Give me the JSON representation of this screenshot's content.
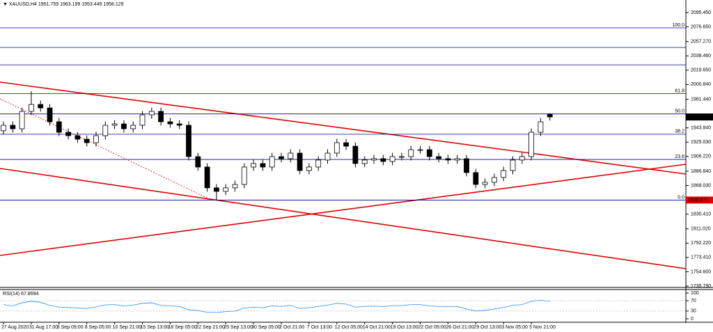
{
  "chart_data": {
    "type": "candlestick",
    "symbol": "XAUUSD,H4",
    "categories": [
      "27 Aug 2020",
      null,
      null,
      "31 Aug 17:00",
      null,
      null,
      "3 Sep 09:00",
      null,
      null,
      "8 Sep 05:00",
      null,
      null,
      "10 Sep 21:00",
      null,
      null,
      "15 Sep 13:00",
      null,
      null,
      "18 Sep 05:00",
      null,
      null,
      "22 Sep 21:00",
      null,
      null,
      "25 Sep 13:00",
      null,
      null,
      "30 Sep 05:00",
      null,
      null,
      "2 Oct 21:00",
      null,
      null,
      "7 Oct 13:00",
      null,
      null,
      "12 Oct 05:00",
      null,
      null,
      "14 Oct 21:00",
      null,
      null,
      "19 Oct 13:00",
      null,
      null,
      "22 Oct 05:00",
      null,
      null,
      "26 Oct 21:00",
      null,
      null,
      "29 Oct 13:00",
      null,
      null,
      "3 Nov 05:00",
      null,
      null,
      "5 Nov 21:00",
      null,
      null
    ],
    "open": [
      1940.0,
      1947.2,
      1942.6,
      1965.5,
      1974.6,
      1970.0,
      1951.8,
      1938.0,
      1933.5,
      1928.9,
      1924.3,
      1933.5,
      1947.2,
      1949.0,
      1942.6,
      1947.2,
      1960.9,
      1965.5,
      1951.8,
      1949.0,
      1947.2,
      1906.0,
      1892.3,
      1864.9,
      1860.3,
      1864.9,
      1869.4,
      1892.3,
      1896.9,
      1892.3,
      1906.0,
      1903.3,
      1910.6,
      1887.7,
      1892.3,
      1901.5,
      1910.6,
      1924.3,
      1919.7,
      1896.9,
      1901.5,
      1903.3,
      1899.6,
      1906.0,
      1906.0,
      1915.1,
      1915.1,
      1906.0,
      1903.3,
      1901.5,
      1903.3,
      1885.0,
      1869.4,
      1872.2,
      1878.6,
      1887.7,
      1901.5,
      1906.0,
      1938.0,
      1961.759
    ],
    "high": [
      1952.2,
      1952.2,
      1970.5,
      1992.0,
      1979.6,
      1975.0,
      1956.8,
      1943.0,
      1938.5,
      1933.9,
      1938.5,
      1952.2,
      1954.0,
      1954.0,
      1952.2,
      1965.9,
      1970.5,
      1970.5,
      1956.8,
      1954.0,
      1952.2,
      1911.0,
      1897.3,
      1869.9,
      1869.9,
      1874.4,
      1897.3,
      1901.9,
      1901.9,
      1911.0,
      1911.0,
      1915.6,
      1915.6,
      1897.3,
      1906.5,
      1915.6,
      1929.3,
      1929.3,
      1924.7,
      1906.5,
      1908.3,
      1908.3,
      1911.0,
      1911.0,
      1920.1,
      1920.1,
      1920.1,
      1911.0,
      1908.3,
      1908.3,
      1908.3,
      1890.0,
      1877.2,
      1883.6,
      1892.7,
      1906.5,
      1911.0,
      1943.0,
      1956.8,
      1963.199
    ],
    "low": [
      1935.0,
      1937.6,
      1937.6,
      1960.5,
      1965.0,
      1946.8,
      1933.0,
      1928.5,
      1923.9,
      1919.3,
      1919.3,
      1928.5,
      1942.2,
      1937.6,
      1937.6,
      1942.2,
      1955.9,
      1946.8,
      1944.0,
      1942.2,
      1901.0,
      1887.3,
      1859.9,
      1848.871,
      1855.3,
      1859.9,
      1864.4,
      1887.3,
      1887.3,
      1887.3,
      1898.3,
      1898.3,
      1882.7,
      1882.7,
      1887.3,
      1896.5,
      1905.6,
      1914.7,
      1891.9,
      1891.9,
      1896.5,
      1894.6,
      1894.6,
      1901.0,
      1901.0,
      1910.1,
      1901.0,
      1898.3,
      1896.5,
      1896.5,
      1880.0,
      1864.4,
      1864.4,
      1867.2,
      1873.6,
      1882.7,
      1896.5,
      1901.0,
      1933.0,
      1953.449
    ],
    "close": [
      1947.2,
      1942.6,
      1965.5,
      1974.6,
      1970.0,
      1951.8,
      1938.0,
      1933.5,
      1928.9,
      1924.3,
      1933.5,
      1947.2,
      1949.0,
      1942.6,
      1947.2,
      1960.9,
      1965.5,
      1951.8,
      1949.0,
      1947.2,
      1906.0,
      1892.3,
      1864.9,
      1860.3,
      1864.9,
      1869.4,
      1892.3,
      1896.9,
      1892.3,
      1906.0,
      1903.3,
      1910.6,
      1887.7,
      1892.3,
      1901.5,
      1910.6,
      1924.3,
      1919.7,
      1896.9,
      1901.5,
      1903.3,
      1899.6,
      1906.0,
      1906.0,
      1915.1,
      1915.1,
      1906.0,
      1903.3,
      1901.5,
      1903.3,
      1885.0,
      1869.4,
      1872.2,
      1878.6,
      1887.7,
      1901.5,
      1906.0,
      1938.0,
      1951.8,
      1958.129
    ],
    "ylim": [
      1734.87,
      2111.92
    ],
    "yticks": [
      {
        "value": 2095.45,
        "label": "2095.450"
      },
      {
        "value": 2076.65,
        "label": "2076.650"
      },
      {
        "value": 2057.27,
        "label": "2057.270"
      },
      {
        "value": 2038.46,
        "label": "2038.460"
      },
      {
        "value": 2019.65,
        "label": "2019.650"
      },
      {
        "value": 2000.84,
        "label": "2000.840"
      },
      {
        "value": 1981.44,
        "label": "1981.440"
      },
      {
        "value": 1943.84,
        "label": "1943.840"
      },
      {
        "value": 1925.03,
        "label": "1925.030"
      },
      {
        "value": 1906.22,
        "label": "1906.220"
      },
      {
        "value": 1886.84,
        "label": "1886.840"
      },
      {
        "value": 1868.03,
        "label": "1868.030"
      },
      {
        "value": 1830.41,
        "label": "1830.410"
      },
      {
        "value": 1811.02,
        "label": "1811.020"
      },
      {
        "value": 1792.22,
        "label": "1792.220"
      },
      {
        "value": 1773.41,
        "label": "1773.410"
      },
      {
        "value": 1754.6,
        "label": "1754.600"
      },
      {
        "value": 1735.79,
        "label": "1735.790"
      }
    ],
    "fib_levels": [
      {
        "label": "100.0",
        "price": 2075.3
      },
      {
        "label": "61.8",
        "price": 1988.8
      },
      {
        "label": "50.0",
        "price": 1962.1
      },
      {
        "label": "38.2",
        "price": 1935.4
      },
      {
        "label": "23.6",
        "price": 1902.3
      },
      {
        "label": "0.0",
        "price": 1848.871
      }
    ],
    "hlines": [
      2049.6,
      2026.7
    ],
    "rsi": {
      "name": "RSI(14)",
      "color": "#1e90ff",
      "values": [
        55,
        50,
        62,
        68,
        64,
        52,
        45,
        44,
        42,
        40,
        46,
        54,
        55,
        50,
        53,
        60,
        62,
        52,
        50,
        48,
        35,
        32,
        25,
        24,
        28,
        30,
        42,
        45,
        43,
        50,
        48,
        52,
        40,
        43,
        48,
        53,
        60,
        57,
        45,
        48,
        49,
        47,
        51,
        51,
        55,
        55,
        50,
        48,
        47,
        48,
        38,
        30,
        33,
        38,
        44,
        52,
        55,
        68,
        72,
        67.8694
      ],
      "ylim": [
        0,
        100
      ],
      "yticks": [
        100,
        70,
        30,
        0
      ]
    }
  }
}
